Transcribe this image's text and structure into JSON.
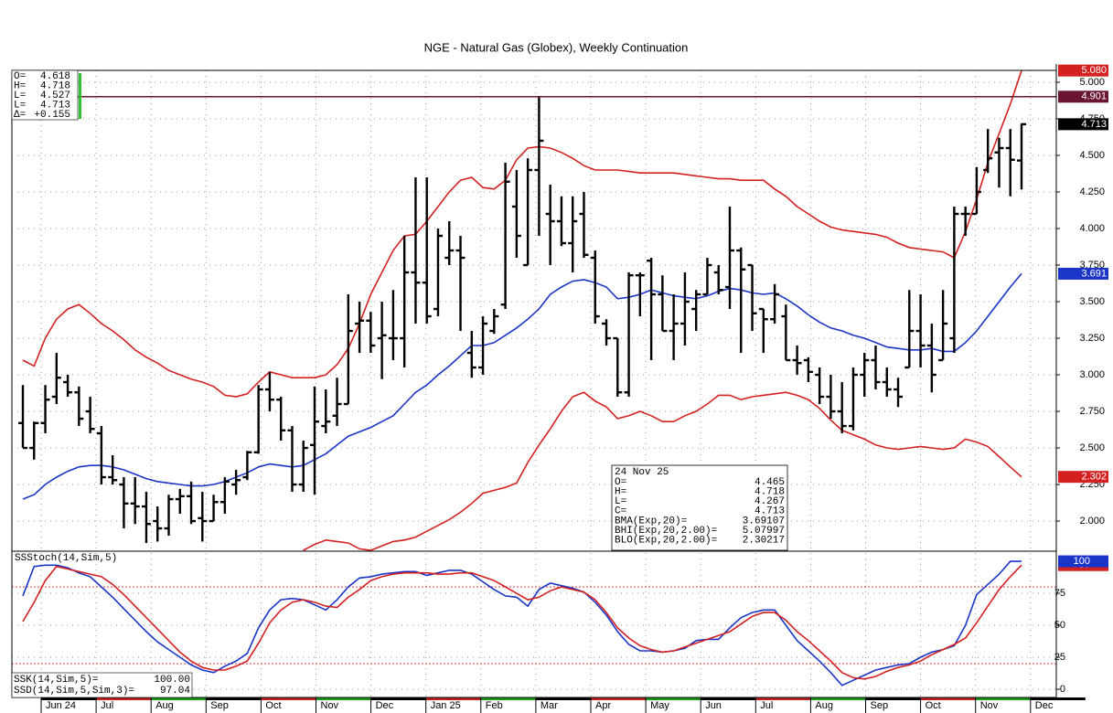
{
  "chart_data": [
    {
      "type": "ohlc",
      "title": "NGE - Natural Gas (Globex), Weekly Continuation",
      "months": [
        "Jun 24",
        "Jul",
        "Aug",
        "Sep",
        "Oct",
        "Nov",
        "Dec",
        "Jan 25",
        "Feb",
        "Mar",
        "Apr",
        "May",
        "Jun",
        "Jul",
        "Aug",
        "Sep",
        "Oct",
        "Nov",
        "Dec"
      ],
      "ylim": [
        1.794,
        5.081
      ],
      "yticks": [
        {
          "value": 2,
          "label": "2.000"
        },
        {
          "value": 2.25,
          "label": "2.250"
        },
        {
          "value": 2.5,
          "label": "2.500"
        },
        {
          "value": 2.75,
          "label": "2.750"
        },
        {
          "value": 3,
          "label": "3.000"
        },
        {
          "value": 3.25,
          "label": "3.250"
        },
        {
          "value": 3.5,
          "label": "3.500"
        },
        {
          "value": 3.75,
          "label": "3.750"
        },
        {
          "value": 4,
          "label": "4.000"
        },
        {
          "value": 4.25,
          "label": "4.250"
        },
        {
          "value": 4.5,
          "label": "4.500"
        },
        {
          "value": 4.75,
          "label": "4.750"
        },
        {
          "value": 5,
          "label": "5.000"
        }
      ],
      "grid": true,
      "bar_color": "#000000",
      "open": [
        2.67,
        2.5,
        2.67,
        2.85,
        2.95,
        2.88,
        2.75,
        2.6,
        2.3,
        2.25,
        2.12,
        2.1,
        2.0,
        1.95,
        2.15,
        2.17,
        2.02,
        2.0,
        2.13,
        2.25,
        2.3,
        2.47,
        2.9,
        2.83,
        2.62,
        2.25,
        2.52,
        2.65,
        2.72,
        2.8,
        3.35,
        3.37,
        3.25,
        3.25,
        3.25,
        3.7,
        3.63,
        3.45,
        3.8,
        3.85,
        3.15,
        3.05,
        3.3,
        3.48,
        4.15,
        3.75,
        4.4,
        4.1,
        4.05,
        3.9,
        4.1,
        3.8,
        3.35,
        3.25,
        2.88,
        3.68,
        3.78,
        3.55,
        3.3,
        3.35,
        3.45,
        3.55,
        3.7,
        3.6,
        3.85,
        3.75,
        3.45,
        3.38,
        3.4,
        3.1,
        3.1,
        3.0,
        2.85,
        2.75,
        2.65,
        3.0,
        3.1,
        2.95,
        2.9,
        3.05,
        3.3,
        3.2,
        3.1,
        3.25,
        4.1,
        4.1,
        4.4,
        4.52,
        4.55,
        4.465
      ],
      "high": [
        2.93,
        2.68,
        2.93,
        3.15,
        3.0,
        2.92,
        2.85,
        2.65,
        2.45,
        2.3,
        2.3,
        2.2,
        2.1,
        2.18,
        2.22,
        2.27,
        2.2,
        2.18,
        2.3,
        2.35,
        2.48,
        2.93,
        3.02,
        2.85,
        2.65,
        2.55,
        2.92,
        2.9,
        2.98,
        3.55,
        3.5,
        3.43,
        3.5,
        3.58,
        3.95,
        4.35,
        4.35,
        4.0,
        4.05,
        3.95,
        3.3,
        3.4,
        3.45,
        4.45,
        4.4,
        4.48,
        4.9,
        4.3,
        4.22,
        4.22,
        4.25,
        3.85,
        3.38,
        3.25,
        3.7,
        3.7,
        3.8,
        3.68,
        3.55,
        3.7,
        3.58,
        3.8,
        3.75,
        4.15,
        3.87,
        3.75,
        3.45,
        3.62,
        3.48,
        3.2,
        3.12,
        3.05,
        3.0,
        2.95,
        3.05,
        3.15,
        3.2,
        3.05,
        2.98,
        3.58,
        3.55,
        3.35,
        3.58,
        4.15,
        4.15,
        4.42,
        4.68,
        4.62,
        4.68,
        4.718
      ],
      "low": [
        2.5,
        2.42,
        2.6,
        2.8,
        2.85,
        2.65,
        2.6,
        2.25,
        2.25,
        1.95,
        1.98,
        1.85,
        1.86,
        1.9,
        2.05,
        1.98,
        1.86,
        2.0,
        2.05,
        2.18,
        2.28,
        2.46,
        2.75,
        2.55,
        2.2,
        2.2,
        2.18,
        2.6,
        2.65,
        2.8,
        3.15,
        3.15,
        2.97,
        3.1,
        3.05,
        3.35,
        3.35,
        3.4,
        3.75,
        3.3,
        2.98,
        3.0,
        3.28,
        3.45,
        3.8,
        3.75,
        3.95,
        3.75,
        3.88,
        3.7,
        3.8,
        3.35,
        3.2,
        2.85,
        2.85,
        3.4,
        3.1,
        3.3,
        3.1,
        3.2,
        3.3,
        3.55,
        3.55,
        3.45,
        3.15,
        3.3,
        3.15,
        3.35,
        3.1,
        3.0,
        2.95,
        2.8,
        2.7,
        2.6,
        2.62,
        2.85,
        2.9,
        2.85,
        2.78,
        3.05,
        3.05,
        2.88,
        3.1,
        3.15,
        3.95,
        4.1,
        4.38,
        4.28,
        4.22,
        4.267
      ],
      "close": [
        2.5,
        2.67,
        2.83,
        2.98,
        2.88,
        2.7,
        2.63,
        2.3,
        2.28,
        2.12,
        2.1,
        1.98,
        1.95,
        2.15,
        2.17,
        2.0,
        2.0,
        2.13,
        2.27,
        2.28,
        2.47,
        2.9,
        2.83,
        2.62,
        2.25,
        2.5,
        2.68,
        2.68,
        2.8,
        3.3,
        3.37,
        3.2,
        3.27,
        3.25,
        3.7,
        3.63,
        3.4,
        3.95,
        3.85,
        3.8,
        3.05,
        3.35,
        3.4,
        4.32,
        3.95,
        4.4,
        4.6,
        4.05,
        3.9,
        4.05,
        3.82,
        3.4,
        3.25,
        2.88,
        3.68,
        3.68,
        3.55,
        3.3,
        3.35,
        3.5,
        3.55,
        3.75,
        3.58,
        3.85,
        3.72,
        3.42,
        3.38,
        3.55,
        3.1,
        3.08,
        3.02,
        2.85,
        2.75,
        2.65,
        3.0,
        3.1,
        2.95,
        2.9,
        2.85,
        3.3,
        3.2,
        3.0,
        3.35,
        4.1,
        4.1,
        4.25,
        4.48,
        4.55,
        4.47,
        4.713
      ],
      "lines": [
        {
          "color": "#d42020",
          "values": [
            3.1,
            3.06,
            3.25,
            3.38,
            3.45,
            3.48,
            3.42,
            3.35,
            3.3,
            3.24,
            3.17,
            3.12,
            3.08,
            3.03,
            3.0,
            2.97,
            2.95,
            2.92,
            2.86,
            2.85,
            2.87,
            2.95,
            3.02,
            3.0,
            2.98,
            2.98,
            2.98,
            3.0,
            3.07,
            3.18,
            3.35,
            3.55,
            3.7,
            3.85,
            3.95,
            3.96,
            4.05,
            4.15,
            4.25,
            4.33,
            4.35,
            4.28,
            4.27,
            4.33,
            4.47,
            4.55,
            4.56,
            4.55,
            4.52,
            4.48,
            4.43,
            4.4,
            4.4,
            4.4,
            4.39,
            4.38,
            4.38,
            4.38,
            4.38,
            4.37,
            4.36,
            4.35,
            4.34,
            4.34,
            4.33,
            4.33,
            4.33,
            4.27,
            4.22,
            4.15,
            4.1,
            4.05,
            4.01,
            3.99,
            3.98,
            3.97,
            3.96,
            3.94,
            3.9,
            3.87,
            3.86,
            3.85,
            3.84,
            3.8,
            3.98,
            4.2,
            4.45,
            4.65,
            4.85,
            5.07997
          ]
        },
        {
          "color": "#1a35c8",
          "values": [
            2.15,
            2.18,
            2.25,
            2.3,
            2.34,
            2.37,
            2.38,
            2.38,
            2.37,
            2.35,
            2.32,
            2.29,
            2.27,
            2.26,
            2.25,
            2.24,
            2.24,
            2.25,
            2.27,
            2.3,
            2.33,
            2.37,
            2.39,
            2.38,
            2.37,
            2.38,
            2.42,
            2.46,
            2.52,
            2.58,
            2.61,
            2.64,
            2.68,
            2.72,
            2.8,
            2.88,
            2.93,
            3.0,
            3.06,
            3.13,
            3.2,
            3.2,
            3.22,
            3.27,
            3.32,
            3.38,
            3.45,
            3.55,
            3.6,
            3.64,
            3.65,
            3.63,
            3.6,
            3.52,
            3.53,
            3.55,
            3.58,
            3.56,
            3.54,
            3.53,
            3.52,
            3.54,
            3.57,
            3.59,
            3.58,
            3.56,
            3.55,
            3.56,
            3.52,
            3.47,
            3.41,
            3.36,
            3.32,
            3.3,
            3.27,
            3.25,
            3.22,
            3.19,
            3.18,
            3.17,
            3.17,
            3.18,
            3.16,
            3.16,
            3.22,
            3.3,
            3.4,
            3.5,
            3.6,
            3.69107
          ]
        },
        {
          "color": "#d42020",
          "values": [
            null,
            null,
            null,
            null,
            null,
            null,
            null,
            null,
            null,
            null,
            null,
            null,
            null,
            null,
            null,
            null,
            null,
            null,
            null,
            null,
            null,
            null,
            null,
            null,
            null,
            1.8,
            1.84,
            1.87,
            1.86,
            1.85,
            1.81,
            1.8,
            1.83,
            1.86,
            1.87,
            1.89,
            1.93,
            1.97,
            2.01,
            2.06,
            2.12,
            2.19,
            2.21,
            2.23,
            2.26,
            2.4,
            2.52,
            2.63,
            2.75,
            2.85,
            2.88,
            2.82,
            2.78,
            2.7,
            2.72,
            2.75,
            2.72,
            2.68,
            2.68,
            2.72,
            2.75,
            2.8,
            2.86,
            2.86,
            2.83,
            2.85,
            2.86,
            2.87,
            2.88,
            2.86,
            2.83,
            2.77,
            2.69,
            2.62,
            2.59,
            2.56,
            2.52,
            2.5,
            2.49,
            2.5,
            2.51,
            2.5,
            2.49,
            2.5,
            2.56,
            2.54,
            2.51,
            2.44,
            2.37,
            2.30217
          ]
        }
      ],
      "markers": [
        {
          "value": 5.07997,
          "label": "5.080",
          "color": "#d42020",
          "line": false
        },
        {
          "value": 4.901,
          "label": "4.901",
          "color": "#6b1535",
          "line": true
        },
        {
          "value": 4.713,
          "label": "4.713",
          "color": "#000000",
          "line": false
        },
        {
          "value": 3.69107,
          "label": "3.691",
          "color": "#1a35c8",
          "line": false
        },
        {
          "value": 2.30217,
          "label": "2.302",
          "color": "#d42020",
          "line": false
        }
      ],
      "quote_box": [
        [
          "O=",
          "4.618"
        ],
        [
          "H=",
          "4.718"
        ],
        [
          "L=",
          "4.527"
        ],
        [
          "L=",
          "4.713"
        ],
        [
          "Δ=",
          "+0.155"
        ]
      ],
      "info_box": {
        "date": "24 Nov 25",
        "rows": [
          [
            "O=",
            "4.465"
          ],
          [
            "H=",
            "4.718"
          ],
          [
            "L=",
            "4.267"
          ],
          [
            "C=",
            "4.713"
          ],
          [
            "BMA(Exp,20)=",
            "3.69107"
          ],
          [
            "BHI(Exp,20,2.00)=",
            "5.07997"
          ],
          [
            "BLO(Exp,20,2.00)=",
            "2.30217"
          ]
        ]
      }
    },
    {
      "type": "line",
      "title": "SSStoch(14,Sim,5)",
      "ylim": [
        -6.4,
        107.9
      ],
      "yticks": [
        0,
        25,
        50,
        75
      ],
      "grid": true,
      "ref_lines": [
        80,
        20
      ],
      "ref_color": "#d42020",
      "lines": [
        {
          "color": "#1a35c8",
          "values": [
            73,
            96,
            97,
            97,
            95,
            91,
            88,
            80,
            72,
            63,
            54,
            45,
            37,
            31,
            25,
            19,
            15,
            13,
            18,
            22,
            28,
            48,
            62,
            70,
            71,
            70,
            66,
            62,
            70,
            80,
            87,
            88,
            90,
            91,
            92,
            92,
            89,
            91,
            93,
            93,
            90,
            84,
            78,
            73,
            72,
            65,
            78,
            83,
            81,
            79,
            76,
            68,
            58,
            45,
            35,
            30,
            30,
            29,
            30,
            32,
            38,
            39,
            39,
            48,
            56,
            60,
            62,
            62,
            50,
            38,
            30,
            22,
            13,
            3,
            7,
            11,
            15,
            17,
            19,
            20,
            25,
            29,
            31,
            34,
            50,
            74,
            82,
            90,
            100,
            100
          ]
        },
        {
          "color": "#d42020",
          "values": [
            53,
            68,
            85,
            96,
            94,
            92,
            90,
            88,
            82,
            74,
            65,
            56,
            47,
            38,
            29,
            22,
            17,
            15,
            15,
            18,
            22,
            36,
            52,
            62,
            68,
            70,
            68,
            65,
            64,
            72,
            78,
            85,
            88,
            90,
            91,
            91,
            91,
            90,
            90,
            91,
            91,
            88,
            85,
            80,
            75,
            70,
            72,
            77,
            80,
            78,
            76,
            70,
            60,
            48,
            40,
            34,
            31,
            29,
            30,
            33,
            36,
            39,
            42,
            45,
            51,
            57,
            60,
            60,
            54,
            45,
            38,
            30,
            22,
            13,
            9,
            8,
            10,
            14,
            17,
            19,
            22,
            27,
            31,
            35,
            40,
            52,
            65,
            78,
            88,
            97.04
          ]
        }
      ],
      "markers": [
        {
          "value": 97.04,
          "label": "97",
          "color": "#d42020"
        },
        {
          "value": 100,
          "label": "100",
          "color": "#1a35c8"
        }
      ],
      "readout": [
        [
          "SSK(14,Sim,5)=",
          "100.00"
        ],
        [
          "SSD(14,Sim,5,Sim,3)=",
          "97.04"
        ]
      ]
    }
  ]
}
